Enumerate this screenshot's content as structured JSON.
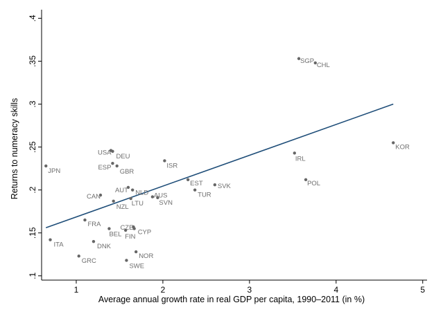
{
  "chart_data": {
    "type": "scatter",
    "xlabel": "Average annual growth rate in real GDP per capita, 1990–2011 (in %)",
    "ylabel": "Returns to numeracy skills",
    "xlim": [
      0.6,
      5.05
    ],
    "ylim": [
      0.095,
      0.41
    ],
    "x_ticks": [
      1,
      2,
      3,
      4,
      5
    ],
    "x_tick_labels": [
      "1",
      "2",
      "3",
      "4",
      "5"
    ],
    "y_ticks": [
      0.1,
      0.15,
      0.2,
      0.25,
      0.3,
      0.35,
      0.4
    ],
    "y_tick_labels": [
      ".1",
      ".15",
      ".2",
      ".25",
      ".3",
      ".35",
      ".4"
    ],
    "grid": false,
    "points": [
      {
        "label": "JPN",
        "x": 0.65,
        "y": 0.228
      },
      {
        "label": "ITA",
        "x": 0.7,
        "y": 0.142
      },
      {
        "label": "GRC",
        "x": 1.03,
        "y": 0.123
      },
      {
        "label": "FRA",
        "x": 1.1,
        "y": 0.165
      },
      {
        "label": "DNK",
        "x": 1.2,
        "y": 0.14
      },
      {
        "label": "CAN",
        "x": 1.28,
        "y": 0.194
      },
      {
        "label": "BEL",
        "x": 1.38,
        "y": 0.155
      },
      {
        "label": "USA",
        "x": 1.4,
        "y": 0.246
      },
      {
        "label": "DEU",
        "x": 1.42,
        "y": 0.245
      },
      {
        "label": "ESP",
        "x": 1.42,
        "y": 0.231
      },
      {
        "label": "GBR",
        "x": 1.47,
        "y": 0.228
      },
      {
        "label": "NZL",
        "x": 1.43,
        "y": 0.187
      },
      {
        "label": "AUT",
        "x": 1.6,
        "y": 0.203
      },
      {
        "label": "NLD",
        "x": 1.65,
        "y": 0.2
      },
      {
        "label": "LTU",
        "x": 1.63,
        "y": 0.19
      },
      {
        "label": "CZE",
        "x": 1.66,
        "y": 0.157
      },
      {
        "label": "FIN",
        "x": 1.57,
        "y": 0.153
      },
      {
        "label": "CYP",
        "x": 1.67,
        "y": 0.155
      },
      {
        "label": "SWE",
        "x": 1.58,
        "y": 0.118
      },
      {
        "label": "NOR",
        "x": 1.69,
        "y": 0.128
      },
      {
        "label": "AUS",
        "x": 1.88,
        "y": 0.192
      },
      {
        "label": "SVN",
        "x": 1.94,
        "y": 0.191
      },
      {
        "label": "ISR",
        "x": 2.02,
        "y": 0.234
      },
      {
        "label": "EST",
        "x": 2.29,
        "y": 0.212
      },
      {
        "label": "TUR",
        "x": 2.37,
        "y": 0.2
      },
      {
        "label": "SVK",
        "x": 2.6,
        "y": 0.206
      },
      {
        "label": "IRL",
        "x": 3.52,
        "y": 0.243
      },
      {
        "label": "POL",
        "x": 3.65,
        "y": 0.212
      },
      {
        "label": "SGP",
        "x": 3.57,
        "y": 0.353
      },
      {
        "label": "CHL",
        "x": 3.76,
        "y": 0.348
      },
      {
        "label": "KOR",
        "x": 4.66,
        "y": 0.255
      }
    ],
    "fit_line": {
      "x": [
        0.65,
        4.66
      ],
      "y": [
        0.156,
        0.3
      ]
    }
  }
}
